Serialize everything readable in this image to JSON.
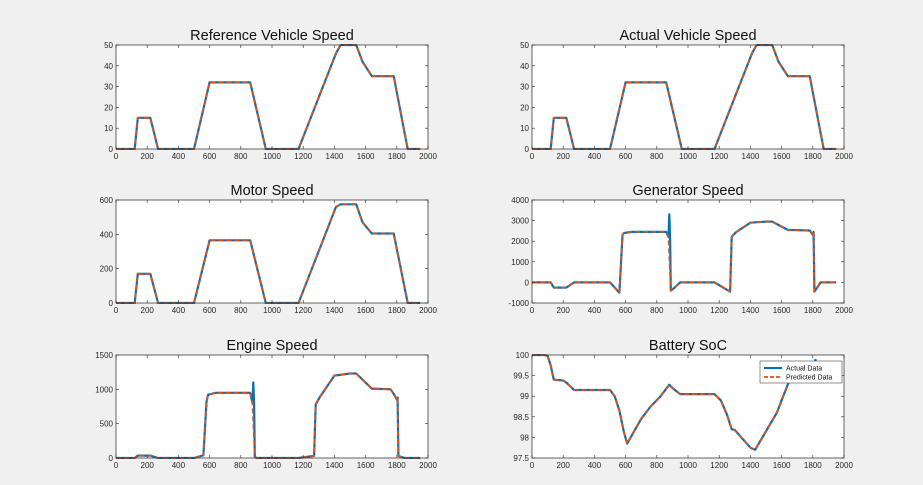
{
  "colors": {
    "actual": "#0072BD",
    "predicted": "#D95319",
    "background": "#f0f0f0",
    "axes_bg": "#ffffff"
  },
  "legend": {
    "actual_label": "Actual Data",
    "predicted_label": "Predicted Data",
    "placement": "top-right",
    "panel": 5
  },
  "chart_data": [
    {
      "type": "line",
      "title": "Reference Vehicle Speed",
      "xlim": [
        0,
        2000
      ],
      "ylim": [
        0,
        50
      ],
      "xticks": [
        0,
        200,
        400,
        600,
        800,
        1000,
        1200,
        1400,
        1600,
        1800,
        2000
      ],
      "yticks": [
        0,
        10,
        20,
        30,
        40,
        50
      ],
      "series": [
        {
          "x": [
            0,
            120,
            140,
            200,
            220,
            270,
            500,
            600,
            660,
            860,
            960,
            1010,
            1170,
            1410,
            1440,
            1540,
            1580,
            1640,
            1780,
            1870,
            1890,
            1950
          ],
          "y": [
            0,
            0,
            15,
            15,
            15,
            0,
            0,
            32,
            32,
            32,
            0,
            0,
            0,
            46,
            50,
            50,
            42,
            35,
            35,
            0,
            0,
            0
          ]
        },
        {
          "x": [
            0,
            120,
            140,
            200,
            220,
            270,
            500,
            600,
            660,
            860,
            960,
            1010,
            1170,
            1410,
            1440,
            1540,
            1580,
            1640,
            1780,
            1870,
            1890,
            1950
          ],
          "y": [
            0,
            0,
            15,
            15,
            15,
            0,
            0,
            32,
            32,
            32,
            0,
            0,
            0,
            46,
            50,
            50,
            42,
            35,
            35,
            0,
            0,
            0
          ]
        }
      ]
    },
    {
      "type": "line",
      "title": "Actual Vehicle Speed",
      "xlim": [
        0,
        2000
      ],
      "ylim": [
        0,
        50
      ],
      "xticks": [
        0,
        200,
        400,
        600,
        800,
        1000,
        1200,
        1400,
        1600,
        1800,
        2000
      ],
      "yticks": [
        0,
        10,
        20,
        30,
        40,
        50
      ],
      "series": [
        {
          "x": [
            0,
            120,
            140,
            200,
            220,
            270,
            500,
            600,
            660,
            860,
            960,
            1010,
            1170,
            1410,
            1440,
            1540,
            1580,
            1640,
            1780,
            1870,
            1890,
            1950
          ],
          "y": [
            0,
            0,
            15,
            15,
            15,
            0,
            0,
            32,
            32,
            32,
            0,
            0,
            0,
            46,
            50,
            50,
            42,
            35,
            35,
            0,
            0,
            0
          ]
        },
        {
          "x": [
            0,
            120,
            140,
            200,
            220,
            270,
            500,
            600,
            660,
            860,
            960,
            1010,
            1170,
            1410,
            1440,
            1540,
            1580,
            1640,
            1780,
            1870,
            1890,
            1950
          ],
          "y": [
            0,
            0,
            15,
            15,
            15,
            0,
            0,
            32,
            32,
            32,
            0,
            0,
            0,
            46,
            50,
            50,
            42,
            35,
            35,
            0,
            0,
            0
          ]
        }
      ]
    },
    {
      "type": "line",
      "title": "Motor Speed",
      "xlim": [
        0,
        2000
      ],
      "ylim": [
        0,
        600
      ],
      "xticks": [
        0,
        200,
        400,
        600,
        800,
        1000,
        1200,
        1400,
        1600,
        1800,
        2000
      ],
      "yticks": [
        0,
        200,
        400,
        600
      ],
      "series": [
        {
          "x": [
            0,
            120,
            140,
            200,
            220,
            270,
            500,
            600,
            660,
            860,
            960,
            1010,
            1170,
            1410,
            1440,
            1540,
            1580,
            1640,
            1780,
            1870,
            1890,
            1950
          ],
          "y": [
            0,
            0,
            170,
            170,
            170,
            0,
            0,
            365,
            365,
            365,
            0,
            0,
            0,
            560,
            575,
            575,
            470,
            405,
            405,
            0,
            0,
            0
          ]
        },
        {
          "x": [
            0,
            120,
            140,
            200,
            220,
            270,
            500,
            600,
            660,
            860,
            960,
            1010,
            1170,
            1410,
            1440,
            1540,
            1580,
            1640,
            1780,
            1870,
            1890,
            1950
          ],
          "y": [
            0,
            0,
            170,
            170,
            170,
            0,
            0,
            365,
            365,
            365,
            0,
            0,
            0,
            560,
            575,
            575,
            470,
            405,
            405,
            0,
            0,
            0
          ]
        }
      ]
    },
    {
      "type": "line",
      "title": "Generator Speed",
      "xlim": [
        0,
        2000
      ],
      "ylim": [
        -1000,
        4000
      ],
      "xticks": [
        0,
        200,
        400,
        600,
        800,
        1000,
        1200,
        1400,
        1600,
        1800,
        2000
      ],
      "yticks": [
        -1000,
        0,
        1000,
        2000,
        3000,
        4000
      ],
      "series": [
        {
          "x": [
            0,
            120,
            140,
            200,
            220,
            270,
            500,
            560,
            580,
            590,
            640,
            860,
            875,
            880,
            885,
            890,
            900,
            950,
            1170,
            1270,
            1280,
            1290,
            1310,
            1400,
            1500,
            1540,
            1640,
            1780,
            1800,
            1805,
            1810,
            1850,
            1950
          ],
          "y": [
            0,
            0,
            -250,
            -250,
            -250,
            0,
            0,
            -500,
            2300,
            2400,
            2450,
            2450,
            2200,
            3300,
            2100,
            -400,
            -350,
            0,
            0,
            -450,
            2200,
            2300,
            2450,
            2900,
            2950,
            2950,
            2550,
            2520,
            2300,
            2450,
            -450,
            0,
            0
          ]
        },
        {
          "x": [
            0,
            120,
            140,
            200,
            220,
            270,
            500,
            560,
            580,
            590,
            640,
            860,
            875,
            890,
            900,
            950,
            1170,
            1270,
            1280,
            1290,
            1310,
            1400,
            1500,
            1540,
            1640,
            1780,
            1800,
            1805,
            1810,
            1850,
            1950
          ],
          "y": [
            0,
            0,
            -250,
            -250,
            -250,
            0,
            0,
            -500,
            2300,
            2400,
            2450,
            2450,
            2200,
            -400,
            -350,
            0,
            0,
            -450,
            2200,
            2300,
            2450,
            2900,
            2950,
            2950,
            2550,
            2520,
            2300,
            2450,
            -450,
            0,
            0
          ]
        }
      ]
    },
    {
      "type": "line",
      "title": "Engine Speed",
      "xlim": [
        0,
        2000
      ],
      "ylim": [
        0,
        1500
      ],
      "xticks": [
        0,
        200,
        400,
        600,
        800,
        1000,
        1200,
        1400,
        1600,
        1800,
        2000
      ],
      "yticks": [
        0,
        500,
        1000,
        1500
      ],
      "series": [
        {
          "x": [
            0,
            120,
            140,
            200,
            220,
            270,
            500,
            560,
            580,
            590,
            640,
            860,
            875,
            880,
            885,
            890,
            900,
            950,
            1170,
            1270,
            1280,
            1290,
            1310,
            1400,
            1500,
            1540,
            1640,
            1760,
            1790,
            1800,
            1805,
            1810,
            1850,
            1950
          ],
          "y": [
            0,
            0,
            35,
            35,
            35,
            0,
            0,
            40,
            820,
            920,
            950,
            950,
            800,
            1100,
            780,
            20,
            0,
            0,
            0,
            30,
            780,
            820,
            900,
            1200,
            1230,
            1230,
            1010,
            1000,
            900,
            850,
            880,
            30,
            0,
            0
          ]
        },
        {
          "x": [
            0,
            120,
            140,
            200,
            220,
            270,
            500,
            560,
            580,
            590,
            640,
            860,
            875,
            890,
            900,
            950,
            1170,
            1270,
            1280,
            1290,
            1310,
            1400,
            1500,
            1540,
            1640,
            1760,
            1790,
            1800,
            1805,
            1810,
            1850,
            1950
          ],
          "y": [
            0,
            0,
            35,
            35,
            35,
            0,
            0,
            40,
            820,
            920,
            950,
            950,
            800,
            20,
            0,
            0,
            0,
            30,
            780,
            820,
            900,
            1200,
            1230,
            1230,
            1010,
            1000,
            900,
            850,
            880,
            30,
            0,
            0
          ]
        }
      ]
    },
    {
      "type": "line",
      "title": "Battery SoC",
      "xlim": [
        0,
        2000
      ],
      "ylim": [
        97.5,
        100
      ],
      "xticks": [
        0,
        200,
        400,
        600,
        800,
        1000,
        1200,
        1400,
        1600,
        1800,
        2000
      ],
      "yticks": [
        97.5,
        98,
        98.5,
        99,
        99.5,
        100
      ],
      "yticklabels": [
        "97.5",
        "98",
        "98.5",
        "99",
        "99.5",
        "100"
      ],
      "series": [
        {
          "name": "Actual Data",
          "x": [
            0,
            80,
            100,
            120,
            140,
            200,
            220,
            270,
            500,
            530,
            560,
            590,
            610,
            650,
            700,
            760,
            820,
            880,
            900,
            950,
            1170,
            1210,
            1250,
            1280,
            1300,
            1400,
            1430,
            1500,
            1570,
            1610,
            1650,
            1700,
            1750,
            1810,
            1820
          ],
          "y": [
            100,
            100,
            99.98,
            99.75,
            99.4,
            99.38,
            99.33,
            99.15,
            99.15,
            99.0,
            98.65,
            98.12,
            97.85,
            98.12,
            98.45,
            98.75,
            98.98,
            99.28,
            99.2,
            99.05,
            99.05,
            98.9,
            98.55,
            98.2,
            98.18,
            97.75,
            97.7,
            98.15,
            98.6,
            99.0,
            99.38,
            99.62,
            99.75,
            99.82,
            99.9
          ]
        },
        {
          "name": "Predicted Data",
          "x": [
            0,
            80,
            100,
            120,
            140,
            200,
            220,
            270,
            500,
            530,
            560,
            590,
            610,
            650,
            700,
            760,
            820,
            880,
            900,
            950,
            1170,
            1210,
            1250,
            1280,
            1300,
            1400,
            1430,
            1500,
            1570,
            1610,
            1650,
            1700,
            1750,
            1810,
            1820
          ],
          "y": [
            100,
            100,
            99.98,
            99.75,
            99.4,
            99.38,
            99.33,
            99.15,
            99.15,
            99.0,
            98.65,
            98.12,
            97.85,
            98.12,
            98.45,
            98.75,
            98.98,
            99.28,
            99.2,
            99.05,
            99.05,
            98.9,
            98.55,
            98.2,
            98.18,
            97.75,
            97.7,
            98.15,
            98.6,
            99.0,
            99.38,
            99.62,
            99.75,
            99.82,
            99.9
          ]
        }
      ]
    }
  ]
}
